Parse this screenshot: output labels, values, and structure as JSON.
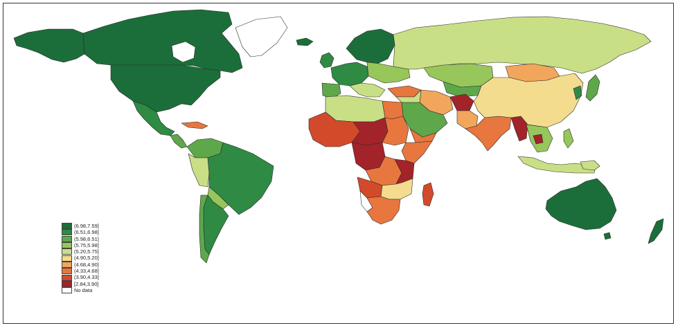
{
  "legend": {
    "items": [
      {
        "label": "(6.98,7.59]",
        "color": "#1b6e3a"
      },
      {
        "label": "(6.51,6.98]",
        "color": "#2f8a44"
      },
      {
        "label": "(5.98,6.51]",
        "color": "#5ea84b"
      },
      {
        "label": "(5.75,5.98]",
        "color": "#97c65a"
      },
      {
        "label": "(5.20,5.75]",
        "color": "#c9df86"
      },
      {
        "label": "(4.90,5.20]",
        "color": "#f3dc8e"
      },
      {
        "label": "(4.68,4.90]",
        "color": "#f2a65c"
      },
      {
        "label": "(4.33,4.68]",
        "color": "#e7773f"
      },
      {
        "label": "(3.90,4.33]",
        "color": "#d34a2b"
      },
      {
        "label": "[2.84,3.90]",
        "color": "#a3232a"
      },
      {
        "label": "No data",
        "color": "#ffffff"
      }
    ]
  }
}
